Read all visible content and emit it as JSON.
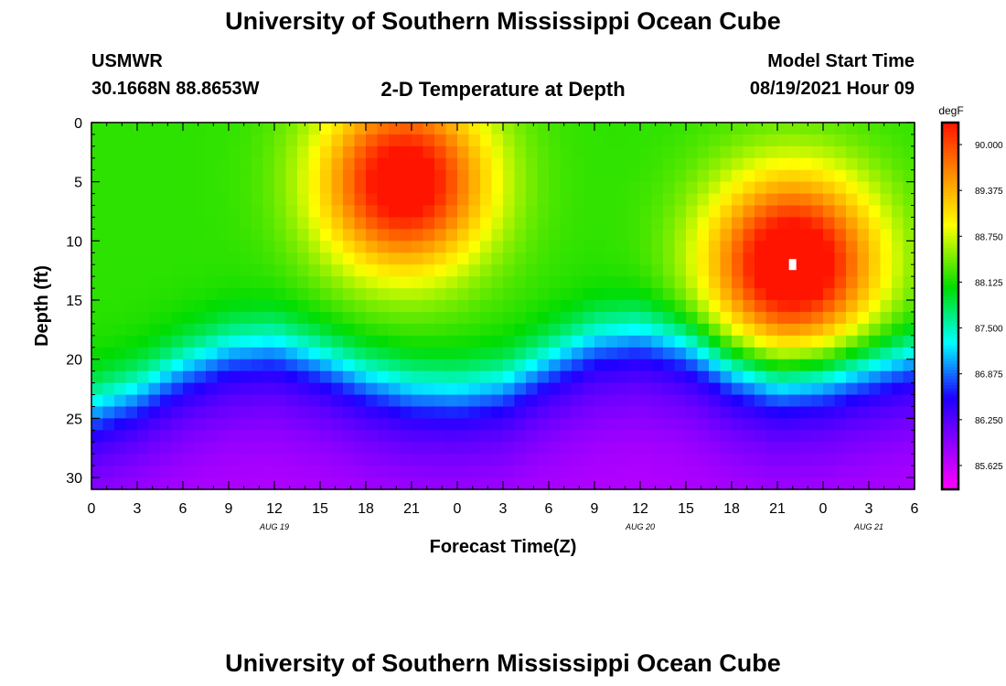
{
  "header": {
    "title": "University of Southern Mississippi Ocean Cube",
    "station": "USMWR",
    "location": "30.1668N  88.8653W",
    "plot_title": "2-D Temperature at Depth",
    "model_label": "Model Start Time",
    "model_time": "08/19/2021 Hour 09"
  },
  "footer": {
    "title": "University of Southern Mississippi Ocean Cube"
  },
  "chart_data": {
    "type": "heatmap",
    "title": "2-D Temperature at Depth",
    "xlabel": "Forecast Time(Z)",
    "ylabel": "Depth (ft)",
    "x_range_hours": [
      0,
      54
    ],
    "y_range_ft": [
      0,
      31
    ],
    "x_tick_hours": [
      0,
      3,
      6,
      9,
      12,
      15,
      18,
      21,
      24,
      27,
      30,
      33,
      36,
      39,
      42,
      45,
      48,
      51,
      54
    ],
    "x_tick_labels": [
      "0",
      "3",
      "6",
      "9",
      "12",
      "15",
      "18",
      "21",
      "0",
      "3",
      "6",
      "9",
      "12",
      "15",
      "18",
      "21",
      "0",
      "3",
      "6"
    ],
    "y_ticks": [
      0,
      5,
      10,
      15,
      20,
      25,
      30
    ],
    "y_tick_labels": [
      "0",
      "5",
      "10",
      "15",
      "20",
      "25",
      "30"
    ],
    "date_labels": [
      {
        "hour": 12,
        "text": "AUG 19"
      },
      {
        "hour": 36,
        "text": "AUG 20"
      },
      {
        "hour": 51,
        "text": "AUG 21"
      }
    ],
    "colorbar": {
      "unit": "degF",
      "min": 85.3,
      "max": 90.3,
      "tick_values": [
        90.0,
        89.375,
        88.75,
        88.125,
        87.5,
        86.875,
        86.25,
        85.625
      ],
      "tick_labels": [
        "90.000",
        "89.375",
        "88.750",
        "88.125",
        "87.500",
        "86.875",
        "86.250",
        "85.625"
      ]
    },
    "thermocline": {
      "description": "depth (ft) of the warm/cold transition at each forecast hour",
      "hours": [
        0,
        3,
        6,
        9,
        12,
        15,
        18,
        21,
        24,
        27,
        30,
        33,
        36,
        39,
        42,
        45,
        48,
        51,
        54
      ],
      "depth_ft": [
        24.0,
        22.6,
        20.5,
        19.0,
        18.6,
        19.8,
        21.4,
        22.4,
        22.6,
        22.0,
        20.0,
        18.2,
        17.6,
        18.6,
        20.8,
        22.0,
        21.6,
        20.6,
        19.6
      ]
    },
    "warm_cores": [
      {
        "hour": 20.5,
        "depth_ft": 5,
        "temp_degF": 90.0
      },
      {
        "hour": 46,
        "depth_ft": 12,
        "temp_degF": 90.2
      }
    ],
    "surface_layer_temp_degF": 88.2,
    "bottom_layer_temp_degF": 85.7
  }
}
